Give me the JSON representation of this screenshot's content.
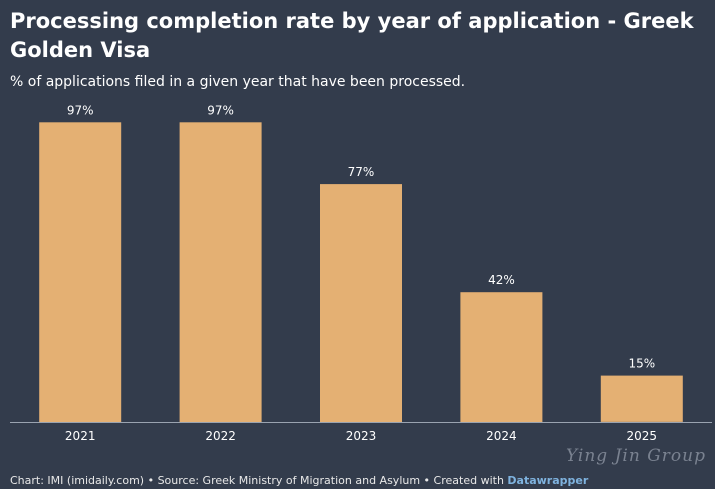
{
  "chart_data": {
    "type": "bar",
    "title": "Processing completion rate by year of application - Greek Golden Visa",
    "subtitle": "% of applications filed in a given year that have been processed.",
    "categories": [
      "2021",
      "2022",
      "2023",
      "2024",
      "2025"
    ],
    "values": [
      97,
      97,
      77,
      42,
      15
    ],
    "value_labels": [
      "97%",
      "97%",
      "77%",
      "42%",
      "15%"
    ],
    "xlabel": "",
    "ylabel": "",
    "ylim": [
      0,
      100
    ],
    "grid": false,
    "bar_color": "#e4b073"
  },
  "footer": {
    "prefix": "Chart: IMI (imidaily.com) • Source: Greek Ministry of Migration and Asylum • Created with ",
    "brand": "Datawrapper"
  },
  "watermark": "Ying Jin Group",
  "colors": {
    "background": "#333c4c",
    "bar": "#e4b073",
    "axis": "#9aa3b0",
    "text": "#ffffff"
  }
}
